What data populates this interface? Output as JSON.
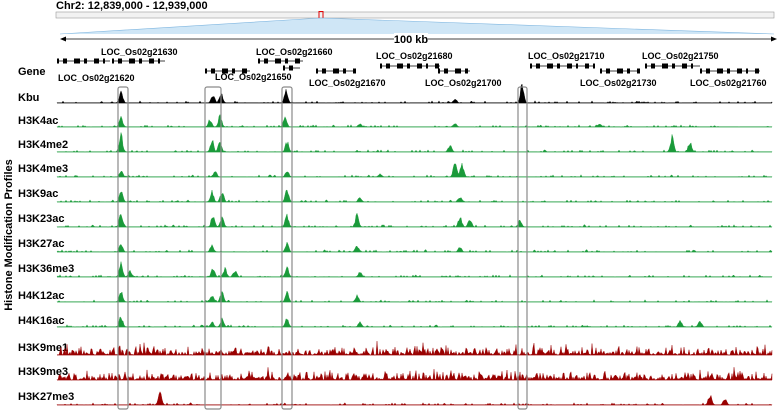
{
  "region": "Chr2: 12,839,000 - 12,939,000",
  "scale_label": "100 kb",
  "gene_track_label": "Gene",
  "y_axis_label": "Histone Modification Profiles",
  "genes_top": [
    "LOC_Os02g21630",
    "LOC_Os02g21660",
    "LOC_Os02g21680",
    "LOC_Os02g21710",
    "LOC_Os02g21750"
  ],
  "genes_bottom": [
    "LOC_Os02g21620",
    "LOC_Os02g21650",
    "LOC_Os02g21670",
    "LOC_Os02g21700",
    "LOC_Os02g21730",
    "LOC_Os02g21760"
  ],
  "tracks": [
    {
      "name": "Kbu",
      "color": "#000000"
    },
    {
      "name": "H3K4ac",
      "color": "#1a9a3a"
    },
    {
      "name": "H3K4me2",
      "color": "#1a9a3a"
    },
    {
      "name": "H3K4me3",
      "color": "#1a9a3a"
    },
    {
      "name": "H3K9ac",
      "color": "#1a9a3a"
    },
    {
      "name": "H3K23ac",
      "color": "#1a9a3a"
    },
    {
      "name": "H3K27ac",
      "color": "#1a9a3a"
    },
    {
      "name": "H3K36me3",
      "color": "#1a9a3a"
    },
    {
      "name": "H4K12ac",
      "color": "#1a9a3a"
    },
    {
      "name": "H4K16ac",
      "color": "#1a9a3a"
    },
    {
      "name": "H3K9me1",
      "color": "#990000"
    },
    {
      "name": "H3K9me3",
      "color": "#990000"
    },
    {
      "name": "H3K27me3",
      "color": "#990000"
    }
  ]
}
